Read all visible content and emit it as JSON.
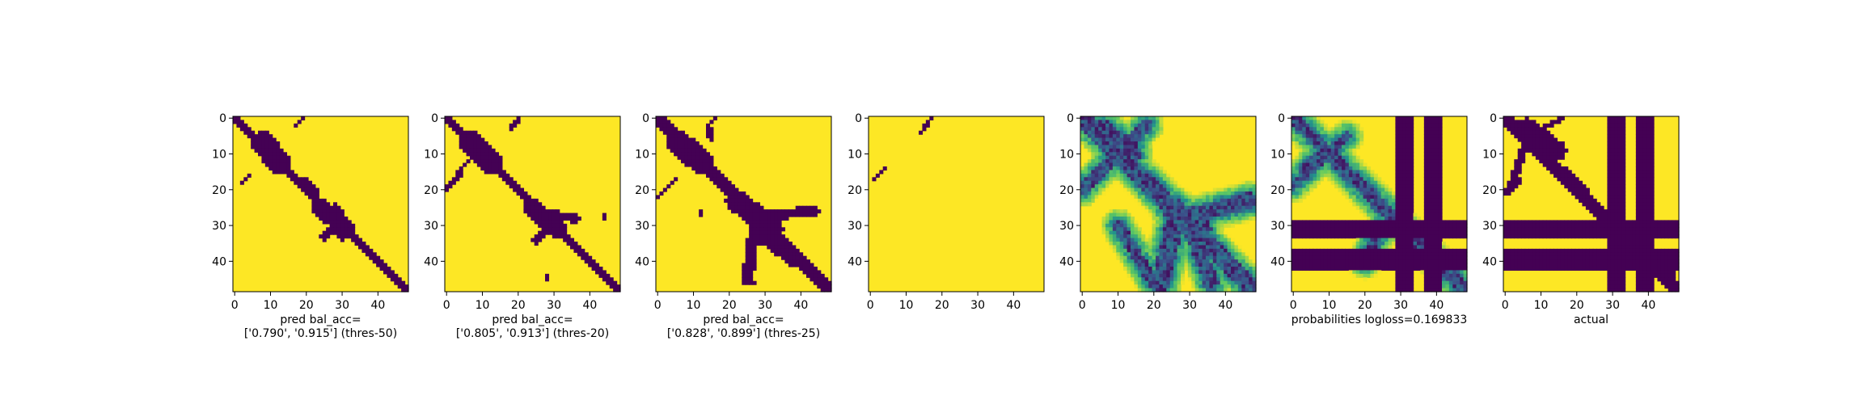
{
  "chart_data": [
    {
      "type": "heatmap",
      "panel": "pred_thres50",
      "caption": [
        "pred bal_acc=",
        "['0.790', '0.915'] (thres-50)"
      ],
      "grid_size": [
        49,
        49
      ],
      "x_ticks": [
        0,
        10,
        20,
        30,
        40
      ],
      "y_ticks": [
        0,
        10,
        20,
        30,
        40
      ],
      "xlim": [
        0,
        48
      ],
      "ylim": [
        48,
        0
      ],
      "colormap": "viridis",
      "binary": true,
      "strokes": [
        {
          "x0": 0,
          "y0": 0,
          "x1": 48,
          "y1": 48,
          "w": 1.3
        },
        {
          "x0": 8,
          "y0": 7,
          "x1": 12,
          "y1": 12,
          "w": 3.2
        },
        {
          "x0": 19,
          "y0": 18,
          "x1": 22,
          "y1": 21,
          "w": 1.5
        },
        {
          "x0": 24,
          "y0": 25,
          "x1": 31,
          "y1": 31,
          "w": 2.4
        },
        {
          "x0": 28,
          "y0": 26,
          "x1": 30,
          "y1": 32,
          "w": 2.2
        },
        {
          "x0": 25,
          "y0": 33,
          "x1": 29,
          "y1": 29,
          "w": 1.1
        },
        {
          "x0": 17,
          "y0": 2,
          "x1": 19,
          "y1": 0,
          "w": 0.7
        },
        {
          "x0": 2,
          "y0": 18,
          "x1": 4,
          "y1": 16,
          "w": 0.7
        }
      ]
    },
    {
      "type": "heatmap",
      "panel": "pred_thres20",
      "caption": [
        "pred bal_acc=",
        "['0.805', '0.913'] (thres-20)"
      ],
      "grid_size": [
        49,
        49
      ],
      "x_ticks": [
        0,
        10,
        20,
        30,
        40
      ],
      "y_ticks": [
        0,
        10,
        20,
        30,
        40
      ],
      "xlim": [
        0,
        48
      ],
      "ylim": [
        48,
        0
      ],
      "colormap": "viridis",
      "binary": true,
      "strokes": [
        {
          "x0": 0,
          "y0": 0,
          "x1": 48,
          "y1": 48,
          "w": 1.4
        },
        {
          "x0": 7,
          "y0": 7,
          "x1": 12,
          "y1": 12,
          "w": 3.2
        },
        {
          "x0": 24,
          "y0": 25,
          "x1": 31,
          "y1": 31,
          "w": 2.6
        },
        {
          "x0": 30,
          "y0": 27,
          "x1": 36,
          "y1": 28,
          "w": 1.2
        },
        {
          "x0": 25,
          "y0": 34,
          "x1": 30,
          "y1": 29,
          "w": 1.3
        },
        {
          "x0": 18,
          "y0": 3,
          "x1": 20,
          "y1": 0,
          "w": 0.6
        },
        {
          "x0": 0,
          "y0": 20,
          "x1": 4,
          "y1": 15,
          "w": 0.7
        },
        {
          "x0": 8,
          "y0": 10,
          "x1": 3,
          "y1": 15,
          "w": 0.6
        },
        {
          "x0": 44,
          "y0": 27,
          "x1": 44,
          "y1": 28,
          "w": 0.6
        },
        {
          "x0": 28,
          "y0": 44,
          "x1": 28,
          "y1": 45,
          "w": 0.6
        }
      ]
    },
    {
      "type": "heatmap",
      "panel": "pred_thres25",
      "caption": [
        "pred bal_acc=",
        "['0.828', '0.899'] (thres-25)"
      ],
      "grid_size": [
        49,
        49
      ],
      "x_ticks": [
        0,
        10,
        20,
        30,
        40
      ],
      "y_ticks": [
        0,
        10,
        20,
        30,
        40
      ],
      "xlim": [
        0,
        48
      ],
      "ylim": [
        48,
        0
      ],
      "colormap": "viridis",
      "binary": true,
      "strokes": [
        {
          "x0": 0,
          "y0": 0,
          "x1": 48,
          "y1": 48,
          "w": 1.6
        },
        {
          "x0": 6,
          "y0": 7,
          "x1": 12,
          "y1": 12,
          "w": 3.4
        },
        {
          "x0": 22,
          "y0": 23,
          "x1": 32,
          "y1": 31,
          "w": 3.0
        },
        {
          "x0": 31,
          "y0": 27,
          "x1": 44,
          "y1": 26,
          "w": 1.4
        },
        {
          "x0": 27,
          "y0": 31,
          "x1": 25,
          "y1": 45,
          "w": 1.6
        },
        {
          "x0": 29,
          "y0": 33,
          "x1": 38,
          "y1": 40,
          "w": 1.6
        },
        {
          "x0": 14,
          "y0": 2,
          "x1": 15,
          "y1": 6,
          "w": 0.8
        },
        {
          "x0": 0,
          "y0": 22,
          "x1": 5,
          "y1": 17,
          "w": 0.7
        },
        {
          "x0": 14,
          "y0": 2,
          "x1": 16,
          "y1": 0,
          "w": 0.6
        },
        {
          "x0": 12,
          "y0": 26,
          "x1": 12,
          "y1": 27,
          "w": 0.6
        },
        {
          "x0": 26,
          "y0": 45,
          "x1": 27,
          "y1": 46,
          "w": 0.7
        }
      ]
    },
    {
      "type": "heatmap",
      "panel": "pred_empty",
      "caption": [],
      "grid_size": [
        49,
        49
      ],
      "x_ticks": [
        0,
        10,
        20,
        30,
        40
      ],
      "y_ticks": [
        0,
        10,
        20,
        30,
        40
      ],
      "xlim": [
        0,
        48
      ],
      "ylim": [
        48,
        0
      ],
      "colormap": "viridis",
      "binary": true,
      "strokes": [
        {
          "x0": 14,
          "y0": 4,
          "x1": 17,
          "y1": 0,
          "w": 0.6
        },
        {
          "x0": 1,
          "y0": 17,
          "x1": 4,
          "y1": 14,
          "w": 0.6
        }
      ]
    },
    {
      "type": "heatmap",
      "panel": "probabilities",
      "caption": [],
      "grid_size": [
        49,
        49
      ],
      "x_ticks": [
        0,
        10,
        20,
        30,
        40
      ],
      "y_ticks": [
        0,
        10,
        20,
        30,
        40
      ],
      "xlim": [
        0,
        48
      ],
      "ylim": [
        48,
        0
      ],
      "colormap": "viridis",
      "binary": false,
      "strokes": [
        {
          "x0": 0,
          "y0": 0,
          "x1": 48,
          "y1": 48,
          "w": 2.2
        },
        {
          "x0": 6,
          "y0": 3,
          "x1": 14,
          "y1": 10,
          "w": 2.5
        },
        {
          "x0": 17,
          "y0": 16,
          "x1": 22,
          "y1": 21,
          "w": 1.8
        },
        {
          "x0": 25,
          "y0": 25,
          "x1": 33,
          "y1": 31,
          "w": 3.0
        },
        {
          "x0": 26,
          "y0": 28,
          "x1": 22,
          "y1": 46,
          "w": 2.5
        },
        {
          "x0": 28,
          "y0": 28,
          "x1": 47,
          "y1": 23,
          "w": 2.2
        },
        {
          "x0": 30,
          "y0": 30,
          "x1": 36,
          "y1": 46,
          "w": 2.0
        },
        {
          "x0": 0,
          "y0": 20,
          "x1": 18,
          "y1": 2,
          "w": 1.5
        },
        {
          "x0": 10,
          "y0": 30,
          "x1": 20,
          "y1": 46,
          "w": 1.5
        }
      ]
    },
    {
      "type": "heatmap",
      "panel": "probabilities_actual",
      "caption": [
        "probabilities logloss=0.169833"
      ],
      "grid_size": [
        49,
        49
      ],
      "x_ticks": [
        0,
        10,
        20,
        30,
        40
      ],
      "y_ticks": [
        0,
        10,
        20,
        30,
        40
      ],
      "xlim": [
        0,
        48
      ],
      "ylim": [
        48,
        0
      ],
      "colormap": "viridis",
      "binary": false,
      "strokes": [
        {
          "x0": 0,
          "y0": 0,
          "x1": 48,
          "y1": 48,
          "w": 1.8
        },
        {
          "x0": 8,
          "y0": 10,
          "x1": 3,
          "y1": 15,
          "w": 1.5
        },
        {
          "x0": 0,
          "y0": 19,
          "x1": 15,
          "y1": 5,
          "w": 1.2
        },
        {
          "x0": 25,
          "y0": 30,
          "x1": 20,
          "y1": 40,
          "w": 1.6
        }
      ],
      "bands_rows": [
        [
          29,
          33
        ],
        [
          37,
          42
        ]
      ],
      "bands_cols": [
        [
          29,
          33
        ],
        [
          37,
          41
        ]
      ]
    },
    {
      "type": "heatmap",
      "panel": "actual",
      "caption": [
        "actual"
      ],
      "grid_size": [
        49,
        49
      ],
      "x_ticks": [
        0,
        10,
        20,
        30,
        40
      ],
      "y_ticks": [
        0,
        10,
        20,
        30,
        40
      ],
      "xlim": [
        0,
        48
      ],
      "ylim": [
        48,
        0
      ],
      "colormap": "viridis",
      "binary": true,
      "strokes": [
        {
          "x0": 0,
          "y0": 0,
          "x1": 48,
          "y1": 48,
          "w": 1.6
        },
        {
          "x0": 6,
          "y0": 3,
          "x1": 14,
          "y1": 9,
          "w": 3.0
        },
        {
          "x0": 5,
          "y0": 9,
          "x1": 2,
          "y1": 18,
          "w": 1.2
        },
        {
          "x0": 17,
          "y0": 15,
          "x1": 22,
          "y1": 20,
          "w": 1.2
        },
        {
          "x0": 0,
          "y0": 21,
          "x1": 4,
          "y1": 17,
          "w": 0.8
        },
        {
          "x0": 10,
          "y0": 3,
          "x1": 16,
          "y1": 0,
          "w": 0.6
        },
        {
          "x0": 46,
          "y0": 41,
          "x1": 47,
          "y1": 45,
          "w": 0.7
        }
      ],
      "bands_rows": [
        [
          29,
          33
        ],
        [
          37,
          42
        ]
      ],
      "bands_cols": [
        [
          29,
          33
        ],
        [
          37,
          41
        ]
      ]
    }
  ]
}
